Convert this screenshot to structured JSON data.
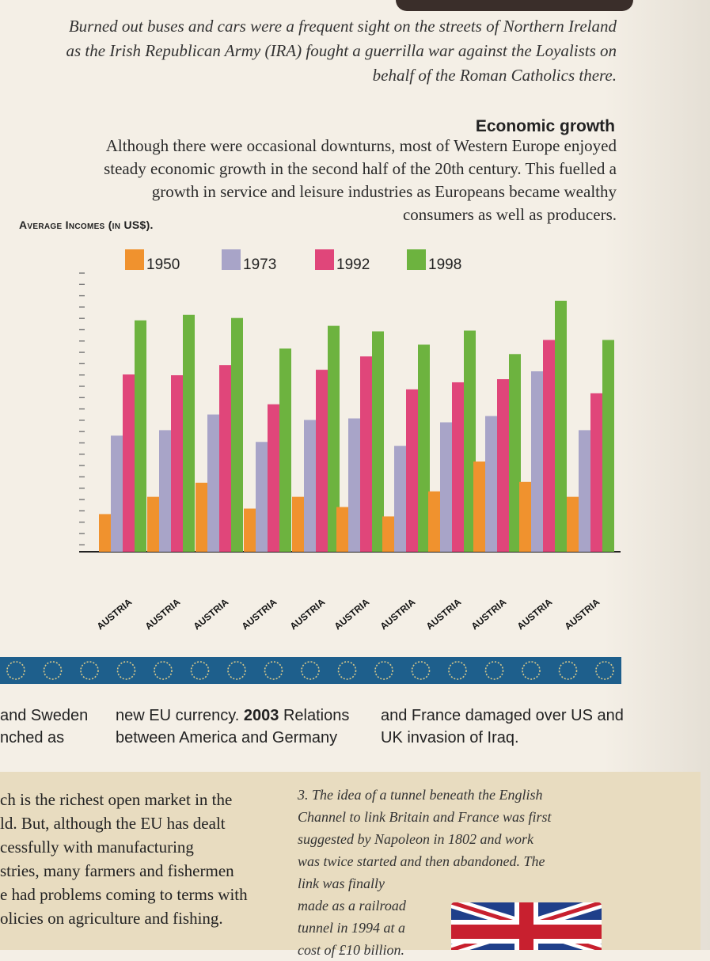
{
  "caption": {
    "line1": "Burned out buses and cars were a frequent sight on the streets of Northern Ireland",
    "line2": "as the Irish Republican Army (IRA) fought a guerrilla war against the Loyalists on",
    "line3": "behalf of the Roman Catholics there."
  },
  "section": {
    "title": "Economic growth",
    "line1": "Although there were occasional downturns, most of Western Europe enjoyed",
    "line2": "steady economic growth in the second half of the 20th century. This fuelled a",
    "line3": "growth in service and leisure industries as Europeans became wealthy",
    "line4": "consumers as well as producers."
  },
  "chart_label": "Average Incomes (in US$).",
  "chart_data": {
    "type": "bar",
    "title": "Average Incomes (in US$).",
    "categories": [
      "AUSTRIA",
      "AUSTRIA",
      "AUSTRIA",
      "AUSTRIA",
      "AUSTRIA",
      "AUSTRIA",
      "AUSTRIA",
      "AUSTRIA",
      "AUSTRIA",
      "AUSTRIA",
      "AUSTRIA"
    ],
    "series": [
      {
        "name": "1950",
        "color": "#f0922e",
        "values": [
          48,
          70,
          88,
          55,
          70,
          57,
          45,
          77,
          115,
          89,
          70
        ]
      },
      {
        "name": "1973",
        "color": "#a8a4c8",
        "values": [
          148,
          155,
          175,
          140,
          168,
          170,
          135,
          165,
          173,
          230,
          155
        ]
      },
      {
        "name": "1992",
        "color": "#e0467a",
        "values": [
          226,
          225,
          238,
          188,
          232,
          249,
          207,
          216,
          220,
          270,
          202
        ]
      },
      {
        "name": "1998",
        "color": "#6db33f",
        "values": [
          295,
          302,
          298,
          259,
          288,
          281,
          264,
          282,
          252,
          320,
          270
        ]
      }
    ],
    "ylim": [
      0,
      330
    ],
    "legend": "top",
    "grid": false
  },
  "timeline": {
    "col1": [
      "and Sweden",
      "nched as"
    ],
    "col2_line1_pre": "new EU currency. ",
    "col2_year": "2003",
    "col2_line1_post": " Relations",
    "col2_line2": "between America and Germany",
    "col3": [
      "and France damaged over US and",
      "UK invasion of Iraq."
    ]
  },
  "box_left": [
    "ch is the richest open market in the",
    "ld. But, although the EU has dealt",
    "cessfully with manufacturing",
    "stries, many farmers and fishermen",
    "e had problems coming to terms with",
    "olicies on agriculture and fishing."
  ],
  "box_right": [
    "3. The idea of a tunnel beneath the English",
    "Channel to link Britain and France was first",
    "suggested by Napoleon in 1802 and work",
    "was twice started and then abandoned. The",
    "link was finally",
    "made as a railroad",
    "tunnel in 1994 at a",
    "cost of £10 billion."
  ]
}
